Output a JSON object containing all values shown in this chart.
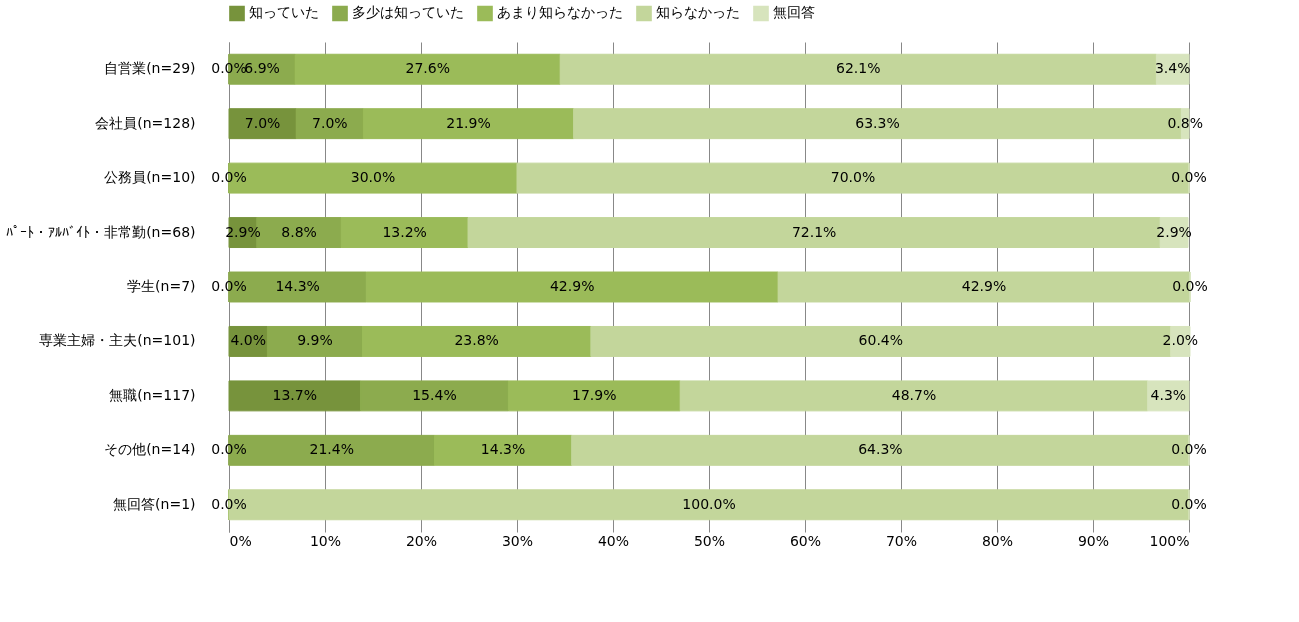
{
  "chart_data": {
    "type": "bar",
    "orientation": "horizontal",
    "stacked": true,
    "categories": [
      "自営業(n=29)",
      "会社員(n=128)",
      "公務員(n=10)",
      "ﾊﾟｰﾄ・ｱﾙﾊﾞｲﾄ・非常勤(n=68)",
      "学生(n=7)",
      "専業主婦・主夫(n=101)",
      "無職(n=117)",
      "その他(n=14)",
      "無回答(n=1)"
    ],
    "series": [
      {
        "name": "知っていた",
        "color": "#77933c",
        "values": [
          0.0,
          7.0,
          0.0,
          2.9,
          0.0,
          4.0,
          13.7,
          0.0,
          0.0
        ],
        "value_labels": [
          "0.0%",
          "7.0%",
          "0.0%",
          "2.9%",
          "0.0%",
          "4.0%",
          "13.7%",
          "0.0%",
          "0.0%"
        ]
      },
      {
        "name": "多少は知っていた",
        "color": "#8cab4e",
        "values": [
          6.9,
          7.0,
          0.0,
          8.8,
          14.3,
          9.9,
          15.4,
          21.4,
          0.0
        ],
        "value_labels": [
          "6.9%",
          "7.0%",
          null,
          "8.8%",
          "14.3%",
          "9.9%",
          "15.4%",
          "21.4%",
          null
        ]
      },
      {
        "name": "あまり知らなかった",
        "color": "#9bbb59",
        "values": [
          27.6,
          21.9,
          30.0,
          13.2,
          42.9,
          23.8,
          17.9,
          14.3,
          0.0
        ],
        "value_labels": [
          "27.6%",
          "21.9%",
          "30.0%",
          "13.2%",
          "42.9%",
          "23.8%",
          "17.9%",
          "14.3%",
          null
        ]
      },
      {
        "name": "知らなかった",
        "color": "#c3d69b",
        "values": [
          62.1,
          63.3,
          70.0,
          72.1,
          42.9,
          60.4,
          48.7,
          64.3,
          100.0
        ],
        "value_labels": [
          "62.1%",
          "63.3%",
          "70.0%",
          "72.1%",
          "42.9%",
          "60.4%",
          "48.7%",
          "64.3%",
          "100.0%"
        ]
      },
      {
        "name": "無回答",
        "color": "#d7e4bd",
        "values": [
          3.4,
          0.8,
          0.0,
          2.9,
          0.0,
          2.0,
          4.3,
          0.0,
          0.0
        ],
        "value_labels": [
          "3.4%",
          "0.8%",
          "0.0%",
          "2.9%",
          "0.0%",
          "2.0%",
          "4.3%",
          "0.0%",
          "0.0%"
        ]
      }
    ],
    "xlim": [
      0,
      100
    ],
    "xticks": [
      {
        "value": 0,
        "label": "0%"
      },
      {
        "value": 10,
        "label": "10%"
      },
      {
        "value": 20,
        "label": "20%"
      },
      {
        "value": 30,
        "label": "30%"
      },
      {
        "value": 40,
        "label": "40%"
      },
      {
        "value": 50,
        "label": "50%"
      },
      {
        "value": 60,
        "label": "60%"
      },
      {
        "value": 70,
        "label": "70%"
      },
      {
        "value": 80,
        "label": "80%"
      },
      {
        "value": 90,
        "label": "90%"
      },
      {
        "value": 100,
        "label": "100%"
      }
    ],
    "grid": "x",
    "legend": "top"
  }
}
